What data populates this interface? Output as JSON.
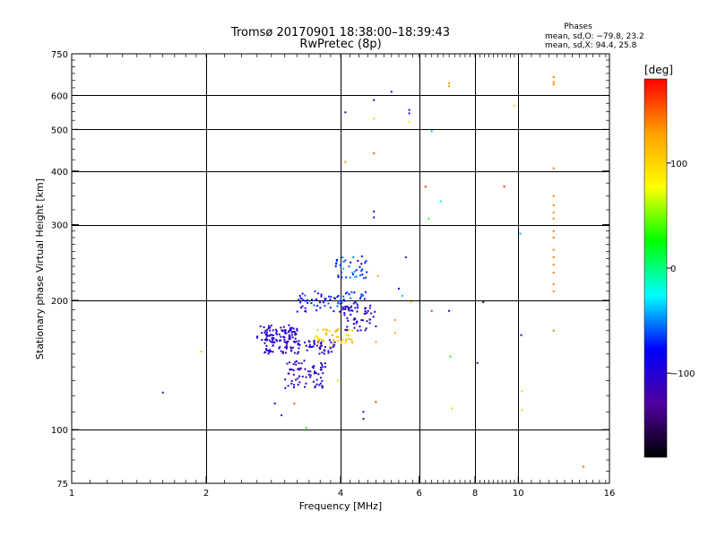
{
  "chart_data": {
    "type": "scatter",
    "title": "Tromsø 20170901 18:38:00–18:39:43",
    "subtitle": "RwPretec (8p)",
    "xlabel": "Frequency [MHz]",
    "ylabel": "Stationary phase Virtual Height [km]",
    "x_scale": "log",
    "y_scale": "log",
    "xlim": [
      1,
      16
    ],
    "ylim": [
      75,
      750
    ],
    "x_ticks": [
      1,
      2,
      4,
      6,
      8,
      10,
      16
    ],
    "x_tick_labels": [
      "1",
      "2",
      "4",
      "6",
      "8",
      "10",
      "16"
    ],
    "y_ticks": [
      75,
      100,
      200,
      300,
      400,
      500,
      600,
      750
    ],
    "y_tick_labels": [
      "75",
      "100",
      "200",
      "300",
      "400",
      "500",
      "600",
      "750"
    ],
    "grid": true,
    "legend_info": {
      "heading": "Phases",
      "line1": "mean, sd,O: −79.8, 23.2",
      "line2": "mean, sd,X:  94.4, 25.8"
    },
    "colorbar": {
      "label": "[deg]",
      "range": [
        -180,
        180
      ],
      "ticks": [
        100,
        0,
        -100
      ],
      "tick_labels": [
        "100",
        "0",
        "−100"
      ],
      "colors": [
        "#ff0000",
        "#ffa000",
        "#ffff00",
        "#00ff00",
        "#00ffff",
        "#0000ff",
        "#5000a0",
        "#000000"
      ]
    },
    "clusters": [
      {
        "f_min": 2.6,
        "f_max": 3.2,
        "h_min": 160,
        "h_max": 175,
        "n": 90,
        "phase_min": -120,
        "phase_max": -90
      },
      {
        "f_min": 2.7,
        "f_max": 3.9,
        "h_min": 150,
        "h_max": 162,
        "n": 90,
        "phase_min": -120,
        "phase_max": -80
      },
      {
        "f_min": 3.0,
        "f_max": 3.7,
        "h_min": 125,
        "h_max": 145,
        "n": 70,
        "phase_min": -120,
        "phase_max": -95
      },
      {
        "f_min": 3.2,
        "f_max": 4.6,
        "h_min": 188,
        "h_max": 210,
        "n": 80,
        "phase_min": -100,
        "phase_max": -55
      },
      {
        "f_min": 3.5,
        "f_max": 4.3,
        "h_min": 155,
        "h_max": 172,
        "n": 50,
        "phase_min": 90,
        "phase_max": 130
      },
      {
        "f_min": 3.9,
        "f_max": 4.6,
        "h_min": 225,
        "h_max": 255,
        "n": 40,
        "phase_min": -95,
        "phase_max": -40
      },
      {
        "f_min": 4.0,
        "f_max": 4.8,
        "h_min": 170,
        "h_max": 195,
        "n": 50,
        "phase_min": -120,
        "phase_max": -90
      }
    ],
    "points": [
      {
        "x": 1.6,
        "y": 122,
        "phase": -110
      },
      {
        "x": 1.95,
        "y": 152,
        "phase": 110
      },
      {
        "x": 2.85,
        "y": 115,
        "phase": -90
      },
      {
        "x": 2.95,
        "y": 108,
        "phase": -120
      },
      {
        "x": 3.15,
        "y": 115,
        "phase": 150
      },
      {
        "x": 3.35,
        "y": 101,
        "phase": 30
      },
      {
        "x": 3.95,
        "y": 130,
        "phase": 60
      },
      {
        "x": 4.1,
        "y": 548,
        "phase": -120
      },
      {
        "x": 4.1,
        "y": 420,
        "phase": 130
      },
      {
        "x": 4.5,
        "y": 110,
        "phase": -120
      },
      {
        "x": 4.5,
        "y": 106,
        "phase": -120
      },
      {
        "x": 4.75,
        "y": 585,
        "phase": -110
      },
      {
        "x": 4.75,
        "y": 530,
        "phase": 100
      },
      {
        "x": 4.75,
        "y": 440,
        "phase": 150
      },
      {
        "x": 4.75,
        "y": 322,
        "phase": -110
      },
      {
        "x": 4.75,
        "y": 312,
        "phase": -120
      },
      {
        "x": 4.8,
        "y": 116,
        "phase": 160
      },
      {
        "x": 4.8,
        "y": 160,
        "phase": 130
      },
      {
        "x": 4.85,
        "y": 228,
        "phase": 130
      },
      {
        "x": 5.2,
        "y": 612,
        "phase": -110
      },
      {
        "x": 5.3,
        "y": 180,
        "phase": 130
      },
      {
        "x": 5.3,
        "y": 168,
        "phase": 130
      },
      {
        "x": 5.4,
        "y": 213,
        "phase": -90
      },
      {
        "x": 5.5,
        "y": 205,
        "phase": -40
      },
      {
        "x": 5.7,
        "y": 555,
        "phase": -120
      },
      {
        "x": 5.7,
        "y": 545,
        "phase": -110
      },
      {
        "x": 5.7,
        "y": 520,
        "phase": 90
      },
      {
        "x": 5.75,
        "y": 198,
        "phase": 100
      },
      {
        "x": 5.6,
        "y": 252,
        "phase": -110
      },
      {
        "x": 6.2,
        "y": 368,
        "phase": 160
      },
      {
        "x": 6.3,
        "y": 310,
        "phase": 30
      },
      {
        "x": 6.4,
        "y": 495,
        "phase": -40
      },
      {
        "x": 6.4,
        "y": 189,
        "phase": 170
      },
      {
        "x": 6.7,
        "y": 340,
        "phase": -30
      },
      {
        "x": 7.0,
        "y": 640,
        "phase": 130
      },
      {
        "x": 7.0,
        "y": 630,
        "phase": 130
      },
      {
        "x": 7.0,
        "y": 189,
        "phase": -110
      },
      {
        "x": 7.05,
        "y": 148,
        "phase": 30
      },
      {
        "x": 7.1,
        "y": 112,
        "phase": 100
      },
      {
        "x": 8.1,
        "y": 143,
        "phase": -120
      },
      {
        "x": 8.35,
        "y": 198,
        "phase": -150
      },
      {
        "x": 9.3,
        "y": 368,
        "phase": 170
      },
      {
        "x": 9.8,
        "y": 568,
        "phase": 100
      },
      {
        "x": 10.1,
        "y": 286,
        "phase": -40
      },
      {
        "x": 10.15,
        "y": 166,
        "phase": -120
      },
      {
        "x": 10.2,
        "y": 123,
        "phase": 100
      },
      {
        "x": 10.2,
        "y": 111,
        "phase": 110
      },
      {
        "x": 12.0,
        "y": 662,
        "phase": 140
      },
      {
        "x": 12.0,
        "y": 645,
        "phase": 140
      },
      {
        "x": 12.0,
        "y": 637,
        "phase": 140
      },
      {
        "x": 12.0,
        "y": 406,
        "phase": 140
      },
      {
        "x": 12.0,
        "y": 350,
        "phase": 140
      },
      {
        "x": 12.0,
        "y": 333,
        "phase": 140
      },
      {
        "x": 12.0,
        "y": 320,
        "phase": 140
      },
      {
        "x": 12.0,
        "y": 310,
        "phase": 140
      },
      {
        "x": 12.0,
        "y": 290,
        "phase": 140
      },
      {
        "x": 12.0,
        "y": 280,
        "phase": 140
      },
      {
        "x": 12.0,
        "y": 262,
        "phase": 140
      },
      {
        "x": 12.0,
        "y": 252,
        "phase": 140
      },
      {
        "x": 12.0,
        "y": 242,
        "phase": 140
      },
      {
        "x": 12.0,
        "y": 232,
        "phase": 140
      },
      {
        "x": 12.0,
        "y": 218,
        "phase": 140
      },
      {
        "x": 12.0,
        "y": 210,
        "phase": 140
      },
      {
        "x": 12.0,
        "y": 170,
        "phase": 140
      },
      {
        "x": 14.0,
        "y": 82,
        "phase": 150
      }
    ]
  }
}
